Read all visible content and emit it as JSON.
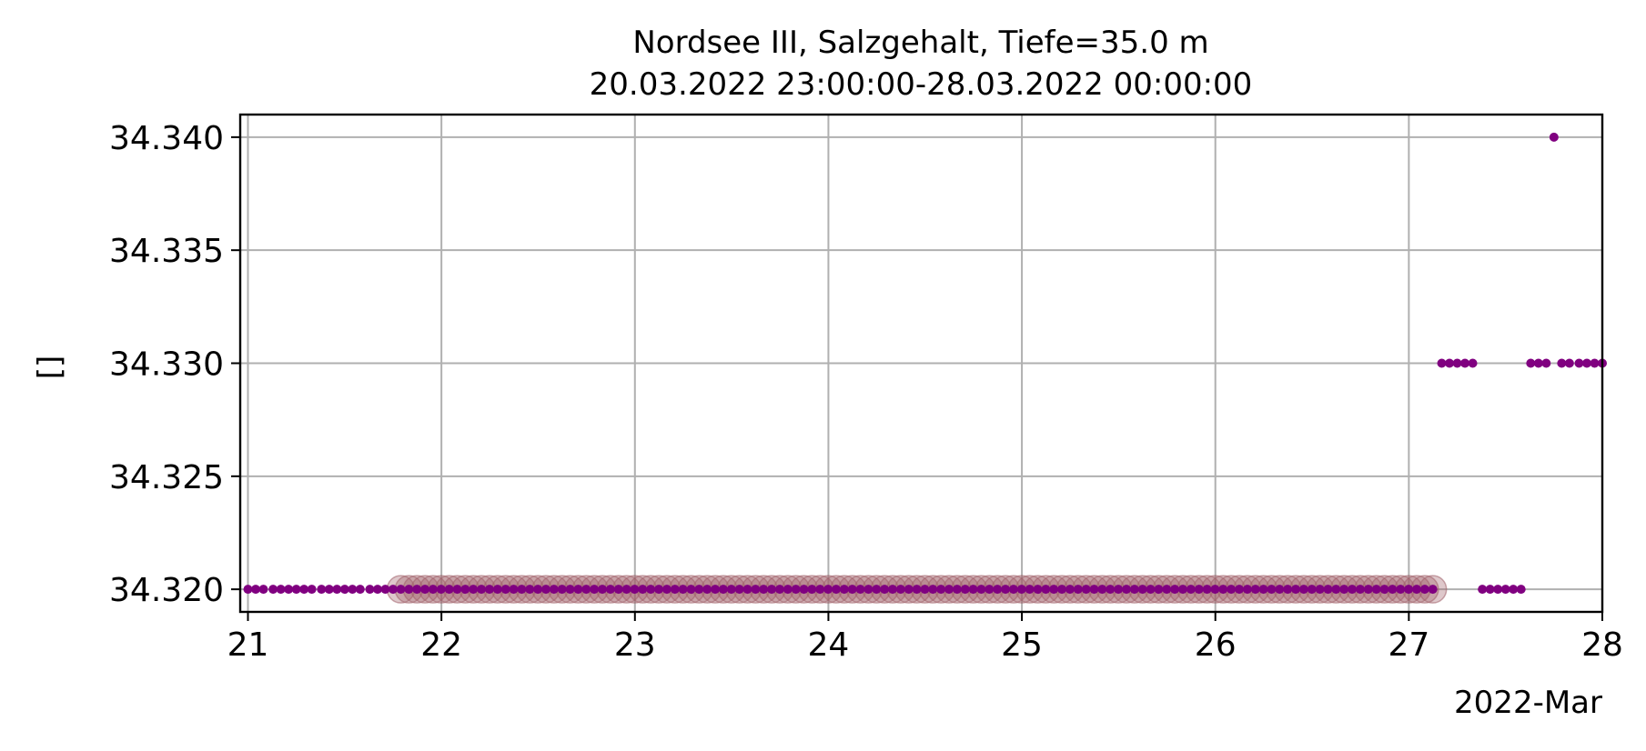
{
  "chart_data": {
    "type": "scatter",
    "title": "Nordsee III, Salzgehalt, Tiefe=35.0 m",
    "subtitle": "20.03.2022 23:00:00-28.03.2022 00:00:00",
    "xlabel": "2022-Mar",
    "ylabel": "[]",
    "x_unit": "day of March 2022",
    "xlim": [
      20.96,
      28.0
    ],
    "ylim": [
      34.319,
      34.341
    ],
    "x_ticks": [
      21,
      22,
      23,
      24,
      25,
      26,
      27,
      28
    ],
    "x_tick_labels": [
      "21",
      "22",
      "23",
      "24",
      "25",
      "26",
      "27",
      "28"
    ],
    "y_ticks": [
      34.32,
      34.325,
      34.33,
      34.335,
      34.34
    ],
    "y_tick_labels": [
      "34.320",
      "34.325",
      "34.330",
      "34.335",
      "34.340"
    ],
    "grid": true,
    "colors": {
      "points": "#800080",
      "highlight": "#a0606a",
      "grid": "#b0b0b0"
    },
    "series": [
      {
        "role": "measurements",
        "x": [
          21.0,
          21.04,
          21.08,
          21.13,
          21.17,
          21.21,
          21.25,
          21.29,
          21.33,
          21.38,
          21.42,
          21.46,
          21.5,
          21.54,
          21.58,
          21.63,
          21.67,
          21.71,
          21.75,
          27.17,
          27.21,
          27.25,
          27.29,
          27.33,
          27.38,
          27.42,
          27.46,
          27.5,
          27.54,
          27.58,
          27.63,
          27.67,
          27.71,
          27.75,
          27.79,
          27.83,
          27.88,
          27.92,
          27.96,
          28.0
        ],
        "y": [
          34.32,
          34.32,
          34.32,
          34.32,
          34.32,
          34.32,
          34.32,
          34.32,
          34.32,
          34.32,
          34.32,
          34.32,
          34.32,
          34.32,
          34.32,
          34.32,
          34.32,
          34.32,
          34.32,
          34.33,
          34.33,
          34.33,
          34.33,
          34.33,
          34.32,
          34.32,
          34.32,
          34.32,
          34.32,
          34.32,
          34.33,
          34.33,
          34.33,
          34.34,
          34.33,
          34.33,
          34.33,
          34.33,
          34.33,
          34.33
        ]
      },
      {
        "role": "flagged-measurements",
        "x_start": 21.79,
        "x_end": 27.13,
        "x_step": 0.04167,
        "y": 34.32
      }
    ]
  }
}
